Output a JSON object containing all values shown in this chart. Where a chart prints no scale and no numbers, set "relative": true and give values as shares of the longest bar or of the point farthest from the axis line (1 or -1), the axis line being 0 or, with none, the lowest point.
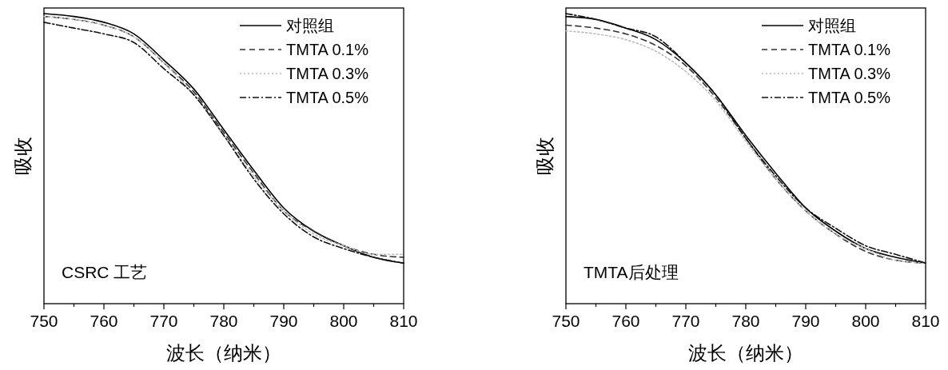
{
  "chart_data": [
    {
      "type": "line",
      "relative": true,
      "xlabel": "波长（纳米）",
      "ylabel": "吸收",
      "annotations": [
        "CSRC 工艺"
      ],
      "legend": "top right",
      "x": [
        750,
        755,
        760,
        765,
        770,
        775,
        780,
        785,
        790,
        795,
        800,
        805,
        810
      ],
      "xlim": [
        750,
        810
      ],
      "xticks": [
        750,
        {
          "value": 755,
          "label": null
        },
        760,
        {
          "value": 765,
          "label": null
        },
        770,
        {
          "value": 775,
          "label": null
        },
        780,
        {
          "value": 785,
          "label": null
        },
        790,
        {
          "value": 795,
          "label": null
        },
        800,
        {
          "value": 805,
          "label": null
        },
        810
      ],
      "series": [
        {
          "name": "对照组",
          "color": "#000000",
          "line_style": "solid",
          "values": [
            1.0,
            0.99,
            0.97,
            0.93,
            0.84,
            0.74,
            0.6,
            0.46,
            0.33,
            0.25,
            0.2,
            0.16,
            0.14
          ]
        },
        {
          "name": "TMTA 0.1%",
          "color": "#333333",
          "line_style": "dashed",
          "values": [
            0.99,
            0.98,
            0.96,
            0.92,
            0.83,
            0.73,
            0.59,
            0.45,
            0.32,
            0.25,
            0.2,
            0.17,
            0.16
          ]
        },
        {
          "name": "TMTA 0.3%",
          "color": "#bbbbbb",
          "line_style": "dotted",
          "values": [
            0.99,
            0.98,
            0.96,
            0.92,
            0.83,
            0.72,
            0.58,
            0.44,
            0.32,
            0.24,
            0.2,
            0.17,
            0.17
          ]
        },
        {
          "name": "TMTA 0.5%",
          "color": "#111111",
          "line_style": "dashdot",
          "values": [
            0.97,
            0.95,
            0.93,
            0.9,
            0.81,
            0.72,
            0.58,
            0.43,
            0.31,
            0.23,
            0.19,
            0.16,
            0.14
          ]
        }
      ]
    },
    {
      "type": "line",
      "relative": true,
      "xlabel": "波长（纳米）",
      "ylabel": "吸收",
      "annotations": [
        "TMTA后处理"
      ],
      "legend": "top right",
      "x": [
        750,
        755,
        760,
        765,
        770,
        775,
        780,
        785,
        790,
        795,
        800,
        805,
        810
      ],
      "xlim": [
        750,
        810
      ],
      "xticks": [
        750,
        {
          "value": 755,
          "label": null
        },
        760,
        {
          "value": 765,
          "label": null
        },
        770,
        {
          "value": 775,
          "label": null
        },
        780,
        {
          "value": 785,
          "label": null
        },
        790,
        {
          "value": 795,
          "label": null
        },
        800,
        {
          "value": 805,
          "label": null
        },
        810
      ],
      "series": [
        {
          "name": "对照组",
          "color": "#000000",
          "line_style": "solid",
          "values": [
            0.99,
            0.98,
            0.95,
            0.91,
            0.83,
            0.72,
            0.58,
            0.45,
            0.33,
            0.25,
            0.19,
            0.16,
            0.14
          ]
        },
        {
          "name": "TMTA 0.1%",
          "color": "#333333",
          "line_style": "dashed",
          "values": [
            0.96,
            0.95,
            0.93,
            0.89,
            0.82,
            0.71,
            0.57,
            0.43,
            0.32,
            0.24,
            0.18,
            0.15,
            0.14
          ]
        },
        {
          "name": "TMTA 0.3%",
          "color": "#bbbbbb",
          "line_style": "dotted",
          "values": [
            0.94,
            0.93,
            0.91,
            0.87,
            0.8,
            0.7,
            0.56,
            0.43,
            0.32,
            0.24,
            0.19,
            0.15,
            0.14
          ]
        },
        {
          "name": "TMTA 0.5%",
          "color": "#111111",
          "line_style": "dashdot",
          "values": [
            1.0,
            0.98,
            0.95,
            0.92,
            0.83,
            0.72,
            0.57,
            0.44,
            0.33,
            0.26,
            0.2,
            0.17,
            0.14
          ]
        }
      ]
    }
  ]
}
